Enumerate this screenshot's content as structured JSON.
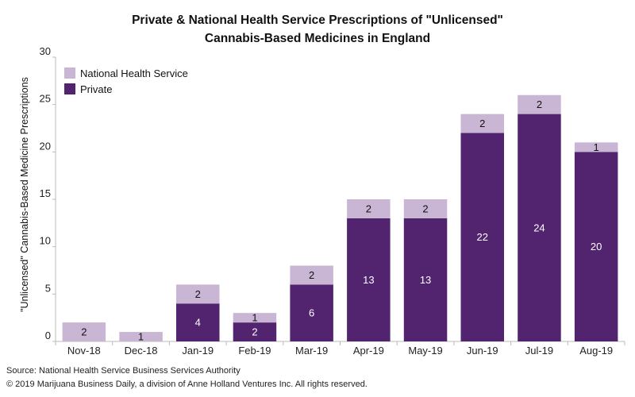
{
  "chart_data": {
    "type": "bar",
    "stacked": true,
    "title": "Private & National Health Service Prescriptions of \"Unlicensed\"",
    "subtitle": "Cannabis-Based Medicines in England",
    "xlabel": "",
    "ylabel": "\"Unlicensed\" Cannabis-Based Medicine Prescriptions",
    "ylim": [
      0,
      30
    ],
    "yticks": [
      0,
      5,
      10,
      15,
      20,
      25,
      30
    ],
    "grid": false,
    "legend_position": "top-left",
    "categories": [
      "Nov-18",
      "Dec-18",
      "Jan-19",
      "Feb-19",
      "Mar-19",
      "Apr-19",
      "May-19",
      "Jun-19",
      "Jul-19",
      "Aug-19"
    ],
    "series": [
      {
        "name": "Private",
        "color": "#52236f",
        "values": [
          0,
          0,
          4,
          2,
          6,
          13,
          13,
          22,
          24,
          20
        ],
        "labels": [
          "",
          "",
          "4",
          "2",
          "6",
          "13",
          "13",
          "22",
          "24",
          "20"
        ]
      },
      {
        "name": "National Health Service",
        "color": "#c8b6d4",
        "values": [
          2,
          1,
          2,
          1,
          2,
          2,
          2,
          2,
          2,
          1
        ],
        "labels": [
          "2",
          "1",
          "2",
          "1",
          "2",
          "2",
          "2",
          "2",
          "2",
          "1"
        ]
      }
    ]
  },
  "footer": {
    "source": "Source: National Health Service Business Services Authority",
    "copyright": "© 2019 Marijuana Business Daily, a division of Anne Holland Ventures Inc. All rights reserved."
  }
}
